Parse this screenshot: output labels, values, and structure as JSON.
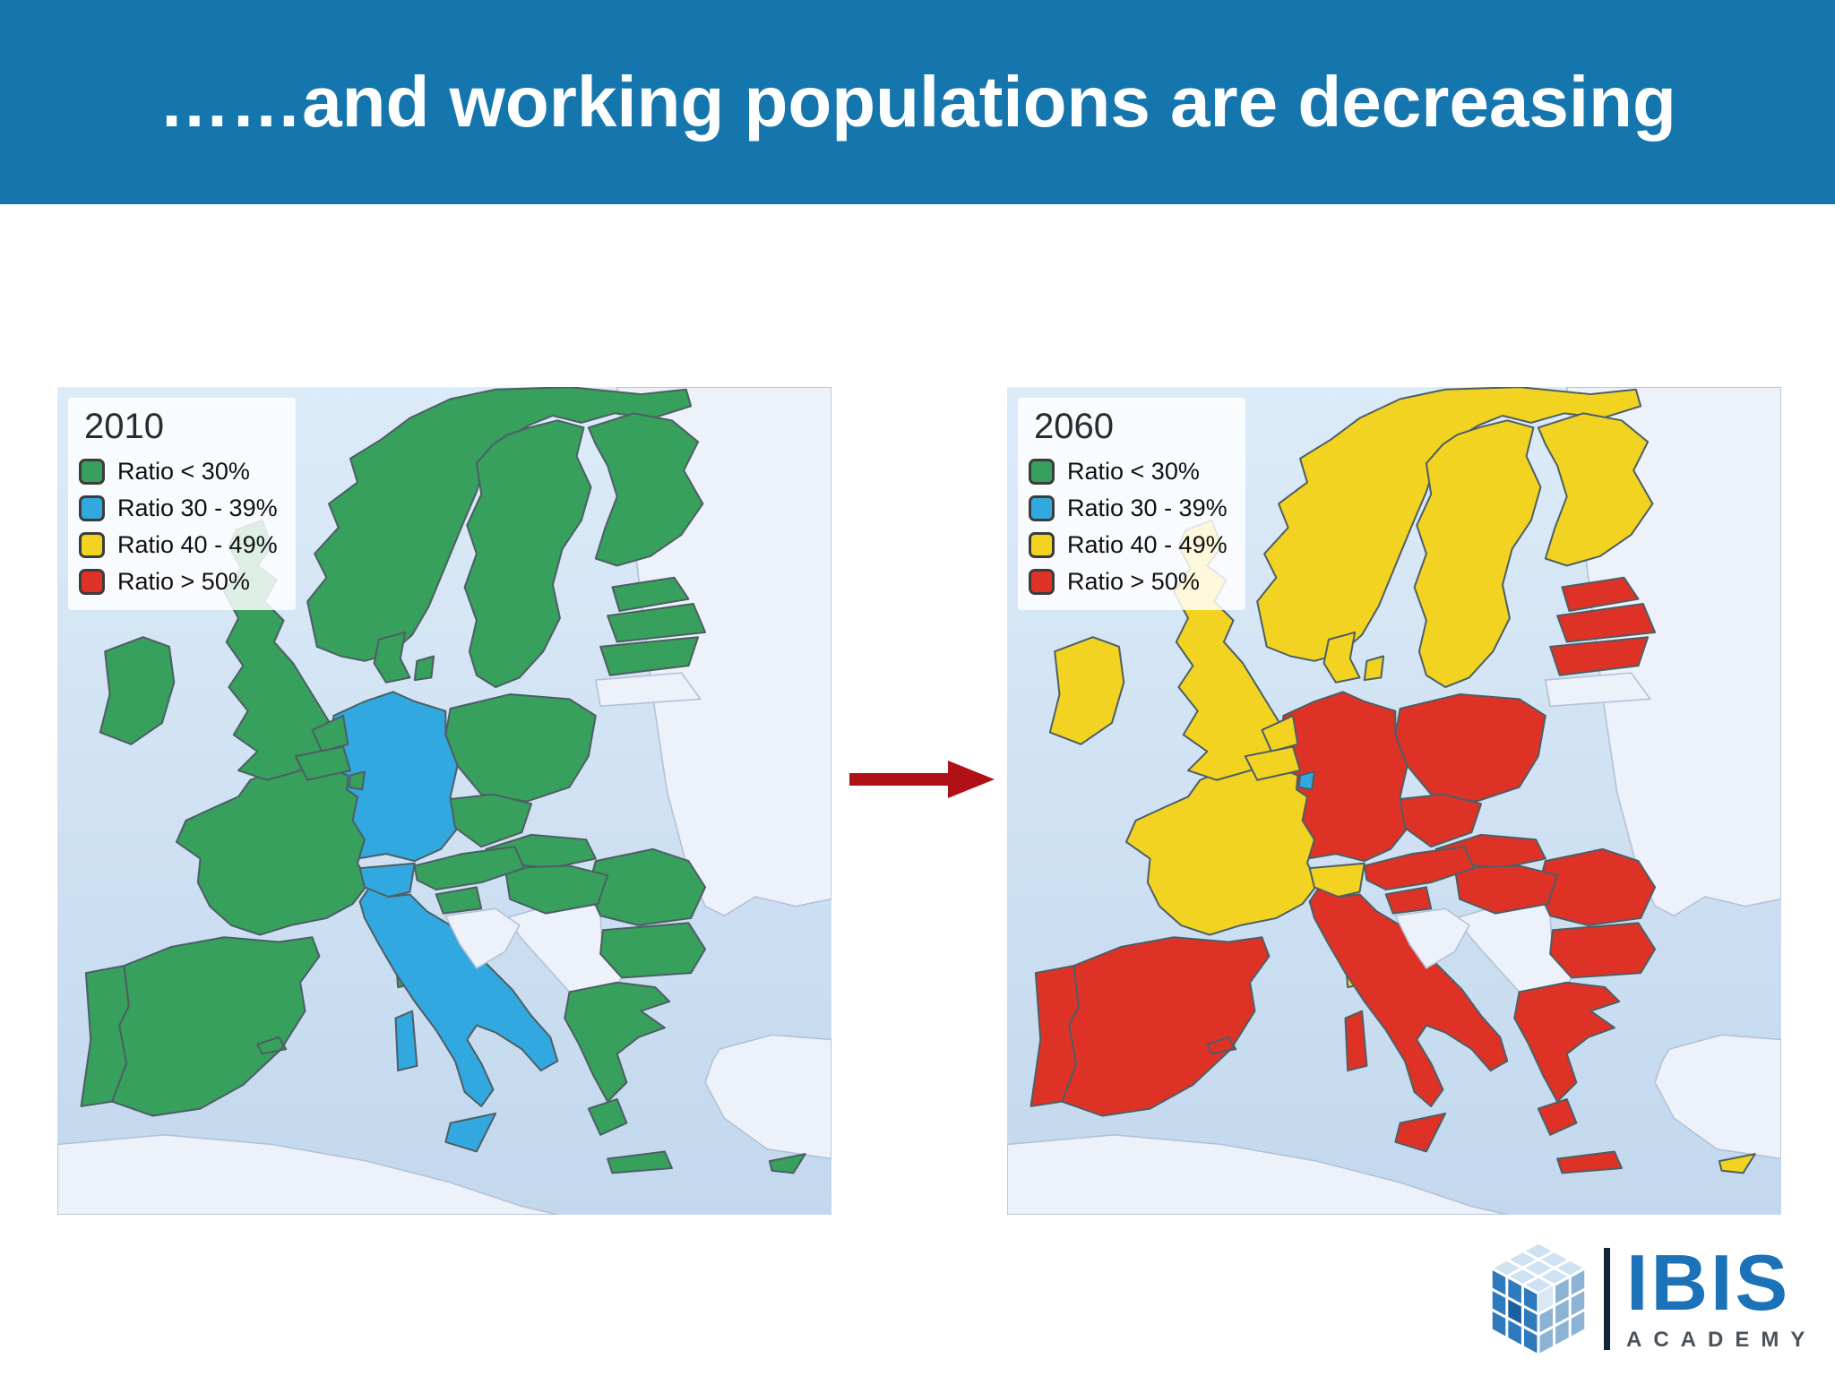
{
  "header": {
    "title": "……and working populations are decreasing"
  },
  "colors": {
    "header_bg": "#1476ad",
    "arrow": "#b01116",
    "sea_top": "#dcebf8",
    "sea_bottom": "#c3d8ee",
    "nodata_fill": "#edf1f9",
    "nodata_stroke": "#b3c1d8",
    "country_stroke": "#4d5e64",
    "categories": {
      "lt30": "#36a05c",
      "r30_39": "#31a8e0",
      "r40_49": "#f2d321",
      "gt50": "#df3226"
    }
  },
  "legend": {
    "items": [
      {
        "key": "lt30",
        "label": "Ratio < 30%"
      },
      {
        "key": "r30_39",
        "label": "Ratio 30 - 39%"
      },
      {
        "key": "r40_49",
        "label": "Ratio 40 - 49%"
      },
      {
        "key": "gt50",
        "label": "Ratio > 50%"
      }
    ]
  },
  "maps": [
    {
      "id": "map-2010",
      "year": "2010"
    },
    {
      "id": "map-2060",
      "year": "2060"
    }
  ],
  "map_data": {
    "type": "choropleth",
    "measure": "Old-age dependency ratio",
    "countries": [
      {
        "name": "Norway",
        "y2010": "lt30",
        "y2060": "r40_49"
      },
      {
        "name": "Sweden",
        "y2010": "lt30",
        "y2060": "r40_49"
      },
      {
        "name": "Finland",
        "y2010": "lt30",
        "y2060": "r40_49"
      },
      {
        "name": "Poland",
        "y2010": "lt30",
        "y2060": "gt50"
      },
      {
        "name": "Germany",
        "y2010": "r30_39",
        "y2060": "gt50"
      },
      {
        "name": "France",
        "y2010": "lt30",
        "y2060": "r40_49"
      },
      {
        "name": "Spain",
        "y2010": "lt30",
        "y2060": "gt50"
      },
      {
        "name": "Portugal",
        "y2010": "lt30",
        "y2060": "gt50"
      },
      {
        "name": "United Kingdom",
        "y2010": "lt30",
        "y2060": "r40_49"
      },
      {
        "name": "Ireland",
        "y2010": "lt30",
        "y2060": "r40_49"
      },
      {
        "name": "Italy",
        "y2010": "r30_39",
        "y2060": "gt50"
      },
      {
        "name": "Romania",
        "y2010": "lt30",
        "y2060": "gt50"
      },
      {
        "name": "Bulgaria",
        "y2010": "lt30",
        "y2060": "gt50"
      },
      {
        "name": "Greece",
        "y2010": "lt30",
        "y2060": "gt50"
      },
      {
        "name": "Denmark",
        "y2010": "lt30",
        "y2060": "r40_49"
      },
      {
        "name": "Estonia",
        "y2010": "lt30",
        "y2060": "gt50"
      },
      {
        "name": "Latvia",
        "y2010": "lt30",
        "y2060": "gt50"
      },
      {
        "name": "Lithuania",
        "y2010": "lt30",
        "y2060": "gt50"
      },
      {
        "name": "Czech Republic",
        "y2010": "lt30",
        "y2060": "gt50"
      },
      {
        "name": "Slovakia",
        "y2010": "lt30",
        "y2060": "gt50"
      },
      {
        "name": "Hungary",
        "y2010": "lt30",
        "y2060": "gt50"
      },
      {
        "name": "Austria",
        "y2010": "lt30",
        "y2060": "gt50"
      },
      {
        "name": "Slovenia",
        "y2010": "lt30",
        "y2060": "gt50"
      },
      {
        "name": "Croatia",
        "y2010": "nodata",
        "y2060": "nodata"
      },
      {
        "name": "Switzerland",
        "y2010": "r30_39",
        "y2060": "r40_49"
      },
      {
        "name": "Netherlands",
        "y2010": "lt30",
        "y2060": "r40_49"
      },
      {
        "name": "Belgium",
        "y2010": "lt30",
        "y2060": "r40_49"
      },
      {
        "name": "Luxembourg",
        "y2010": "lt30",
        "y2060": "r30_39"
      },
      {
        "name": "Cyprus",
        "y2010": "lt30",
        "y2060": "r40_49"
      }
    ]
  },
  "logo": {
    "name": "IBIS",
    "sub": "ACADEMY",
    "color": "#1c72b8",
    "sub_color": "#4b545c"
  }
}
